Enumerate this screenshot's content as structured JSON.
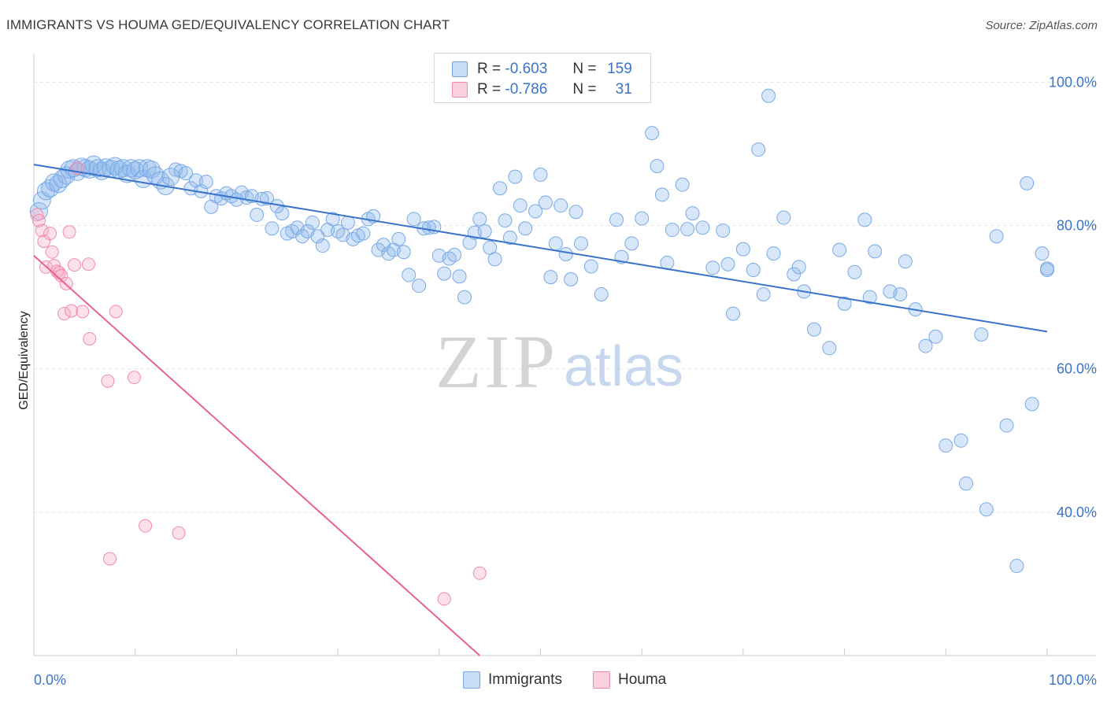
{
  "header": {
    "title": "IMMIGRANTS VS HOUMA GED/EQUIVALENCY CORRELATION CHART",
    "source": "Source: ZipAtlas.com"
  },
  "watermark": {
    "zip": "ZIP",
    "atlas": "atlas"
  },
  "legend": {
    "rows": [
      {
        "r_label": "R =",
        "r_value": "-0.603",
        "n_label": "N =",
        "n_value": "159",
        "color": "#7aaae8",
        "fill": "#c9dcf7"
      },
      {
        "r_label": "R =",
        "r_value": "-0.786",
        "n_label": "N =",
        "n_value": "31",
        "color": "#f08bab",
        "fill": "#fbd0de"
      }
    ]
  },
  "bottom_legend": [
    {
      "label": "Immigrants",
      "color": "#7aaae8",
      "fill": "#c9dcf7"
    },
    {
      "label": "Houma",
      "color": "#f08bab",
      "fill": "#fbd0de"
    }
  ],
  "chart_data": {
    "type": "scatter",
    "title": "IMMIGRANTS VS HOUMA GED/EQUIVALENCY CORRELATION CHART",
    "xlabel": "",
    "ylabel": "GED/Equivalency",
    "xlim": [
      0,
      100
    ],
    "ylim": [
      20,
      104
    ],
    "x_tick_labels": [
      "0.0%",
      "100.0%"
    ],
    "y_ticks": [
      40,
      60,
      80,
      100
    ],
    "y_tick_labels": [
      "40.0%",
      "60.0%",
      "80.0%",
      "100.0%"
    ],
    "grid": true,
    "legend_position": "top-center",
    "series": [
      {
        "name": "Immigrants",
        "color": "#3a74c9",
        "trend": {
          "x": [
            0,
            100
          ],
          "y": [
            88.5,
            65.2
          ]
        },
        "points": [
          [
            0.5,
            82
          ],
          [
            0.8,
            83.5
          ],
          [
            1.2,
            84.8
          ],
          [
            1.6,
            85.2
          ],
          [
            2.0,
            86
          ],
          [
            2.4,
            85.8
          ],
          [
            2.8,
            86.5
          ],
          [
            3.2,
            87
          ],
          [
            3.5,
            87.8
          ],
          [
            3.9,
            88
          ],
          [
            4.3,
            87.5
          ],
          [
            4.7,
            88.2
          ],
          [
            5.1,
            88
          ],
          [
            5.5,
            87.8
          ],
          [
            5.9,
            88.5
          ],
          [
            6.3,
            88
          ],
          [
            6.7,
            87.6
          ],
          [
            7.1,
            88.1
          ],
          [
            7.6,
            87.9
          ],
          [
            8.0,
            88.3
          ],
          [
            8.4,
            87.8
          ],
          [
            8.8,
            88
          ],
          [
            9.2,
            87.2
          ],
          [
            9.6,
            88
          ],
          [
            10.0,
            87.7
          ],
          [
            10.4,
            88
          ],
          [
            10.8,
            86.5
          ],
          [
            11.2,
            88
          ],
          [
            11.6,
            87.8
          ],
          [
            12.0,
            87
          ],
          [
            12.5,
            86.3
          ],
          [
            13.0,
            85.5
          ],
          [
            13.5,
            86.8
          ],
          [
            14.0,
            87.8
          ],
          [
            14.5,
            87.6
          ],
          [
            15.0,
            87.3
          ],
          [
            15.5,
            85.2
          ],
          [
            16.0,
            86.3
          ],
          [
            16.5,
            84.8
          ],
          [
            17.0,
            86.1
          ],
          [
            17.5,
            82.6
          ],
          [
            18.0,
            84.1
          ],
          [
            18.5,
            83.8
          ],
          [
            19.0,
            84.5
          ],
          [
            19.5,
            84.1
          ],
          [
            20.0,
            83.6
          ],
          [
            20.5,
            84.6
          ],
          [
            21.0,
            83.9
          ],
          [
            21.5,
            84.1
          ],
          [
            22.0,
            81.5
          ],
          [
            22.5,
            83.7
          ],
          [
            23.0,
            83.8
          ],
          [
            23.5,
            79.6
          ],
          [
            24.0,
            82.7
          ],
          [
            24.5,
            81.7
          ],
          [
            25.0,
            78.9
          ],
          [
            25.5,
            79.2
          ],
          [
            26.0,
            79.7
          ],
          [
            26.5,
            78.5
          ],
          [
            27.0,
            79.2
          ],
          [
            27.5,
            80.4
          ],
          [
            28.0,
            78.5
          ],
          [
            28.5,
            77.2
          ],
          [
            29.0,
            79.4
          ],
          [
            29.5,
            80.9
          ],
          [
            30.0,
            79.2
          ],
          [
            30.5,
            78.7
          ],
          [
            31.0,
            80.4
          ],
          [
            31.5,
            78.1
          ],
          [
            32.0,
            78.6
          ],
          [
            32.5,
            78.9
          ],
          [
            33.0,
            80.9
          ],
          [
            33.5,
            81.3
          ],
          [
            34.0,
            76.6
          ],
          [
            34.5,
            77.3
          ],
          [
            35.0,
            76.1
          ],
          [
            35.5,
            76.6
          ],
          [
            36.0,
            78.1
          ],
          [
            36.5,
            76.3
          ],
          [
            37.0,
            73.1
          ],
          [
            37.5,
            80.9
          ],
          [
            38.0,
            71.6
          ],
          [
            38.5,
            79.6
          ],
          [
            39.0,
            79.7
          ],
          [
            39.5,
            79.8
          ],
          [
            40.0,
            75.8
          ],
          [
            40.5,
            73.3
          ],
          [
            41.0,
            75.4
          ],
          [
            41.5,
            75.9
          ],
          [
            42.0,
            72.9
          ],
          [
            42.5,
            70.0
          ],
          [
            43.0,
            77.6
          ],
          [
            43.5,
            79.0
          ],
          [
            44.0,
            80.9
          ],
          [
            44.5,
            79.2
          ],
          [
            45.0,
            76.9
          ],
          [
            45.5,
            75.3
          ],
          [
            46.0,
            85.2
          ],
          [
            46.5,
            80.7
          ],
          [
            47.0,
            78.3
          ],
          [
            47.5,
            86.8
          ],
          [
            48.0,
            82.8
          ],
          [
            48.5,
            79.6
          ],
          [
            49.5,
            82.0
          ],
          [
            50.0,
            87.1
          ],
          [
            50.5,
            83.2
          ],
          [
            51.0,
            72.8
          ],
          [
            51.5,
            77.5
          ],
          [
            52.0,
            82.8
          ],
          [
            52.5,
            76.0
          ],
          [
            53.0,
            72.5
          ],
          [
            53.5,
            81.9
          ],
          [
            54.0,
            77.5
          ],
          [
            55.0,
            74.3
          ],
          [
            56.0,
            70.4
          ],
          [
            57.5,
            80.8
          ],
          [
            58.0,
            75.6
          ],
          [
            59.0,
            77.5
          ],
          [
            60.0,
            81.0
          ],
          [
            61.0,
            92.9
          ],
          [
            61.5,
            88.3
          ],
          [
            62.0,
            84.3
          ],
          [
            62.5,
            74.8
          ],
          [
            63.0,
            79.4
          ],
          [
            64.0,
            85.7
          ],
          [
            64.5,
            79.5
          ],
          [
            65.0,
            81.7
          ],
          [
            66.0,
            79.7
          ],
          [
            67.0,
            74.1
          ],
          [
            68.0,
            79.3
          ],
          [
            68.5,
            74.6
          ],
          [
            69.0,
            67.7
          ],
          [
            70.0,
            76.7
          ],
          [
            71.0,
            73.8
          ],
          [
            71.5,
            90.6
          ],
          [
            72.0,
            70.4
          ],
          [
            72.5,
            98.1
          ],
          [
            73.0,
            76.1
          ],
          [
            74.0,
            81.1
          ],
          [
            75.0,
            73.2
          ],
          [
            75.5,
            74.2
          ],
          [
            76.0,
            70.8
          ],
          [
            77.0,
            65.5
          ],
          [
            78.5,
            62.9
          ],
          [
            79.5,
            76.6
          ],
          [
            80.0,
            69.1
          ],
          [
            81.0,
            73.5
          ],
          [
            82.0,
            80.8
          ],
          [
            82.5,
            70.0
          ],
          [
            83.0,
            76.4
          ],
          [
            84.5,
            70.8
          ],
          [
            85.5,
            70.4
          ],
          [
            86.0,
            75.0
          ],
          [
            87.0,
            68.3
          ],
          [
            88.0,
            63.2
          ],
          [
            89.0,
            64.5
          ],
          [
            90.0,
            49.3
          ],
          [
            91.5,
            50.0
          ],
          [
            92.0,
            44.0
          ],
          [
            93.5,
            64.8
          ],
          [
            94.0,
            40.4
          ],
          [
            95.0,
            78.5
          ],
          [
            96.0,
            52.1
          ],
          [
            97.0,
            32.5
          ],
          [
            98.0,
            85.9
          ],
          [
            98.5,
            55.1
          ],
          [
            99.5,
            76.1
          ],
          [
            100.0,
            73.8
          ],
          [
            100.0,
            74.0
          ]
        ]
      },
      {
        "name": "Houma",
        "color": "#e8628f",
        "trend": {
          "x": [
            0,
            44
          ],
          "y": [
            75.8,
            20
          ]
        },
        "points": [
          [
            0.3,
            81.5
          ],
          [
            0.5,
            80.7
          ],
          [
            0.8,
            79.3
          ],
          [
            1.0,
            77.8
          ],
          [
            1.2,
            74.2
          ],
          [
            1.6,
            78.9
          ],
          [
            1.8,
            76.3
          ],
          [
            2.0,
            74.4
          ],
          [
            2.3,
            73.6
          ],
          [
            2.5,
            73.4
          ],
          [
            2.7,
            73.0
          ],
          [
            3.0,
            67.7
          ],
          [
            3.2,
            71.9
          ],
          [
            3.5,
            79.1
          ],
          [
            3.7,
            68.1
          ],
          [
            4.0,
            74.5
          ],
          [
            4.3,
            88.0
          ],
          [
            4.8,
            68.0
          ],
          [
            5.4,
            74.6
          ],
          [
            5.5,
            64.2
          ],
          [
            7.3,
            58.3
          ],
          [
            7.5,
            33.5
          ],
          [
            8.1,
            68.0
          ],
          [
            9.9,
            58.8
          ],
          [
            11.0,
            38.1
          ],
          [
            14.3,
            37.1
          ],
          [
            40.5,
            27.9
          ],
          [
            44.0,
            31.5
          ]
        ]
      }
    ]
  }
}
